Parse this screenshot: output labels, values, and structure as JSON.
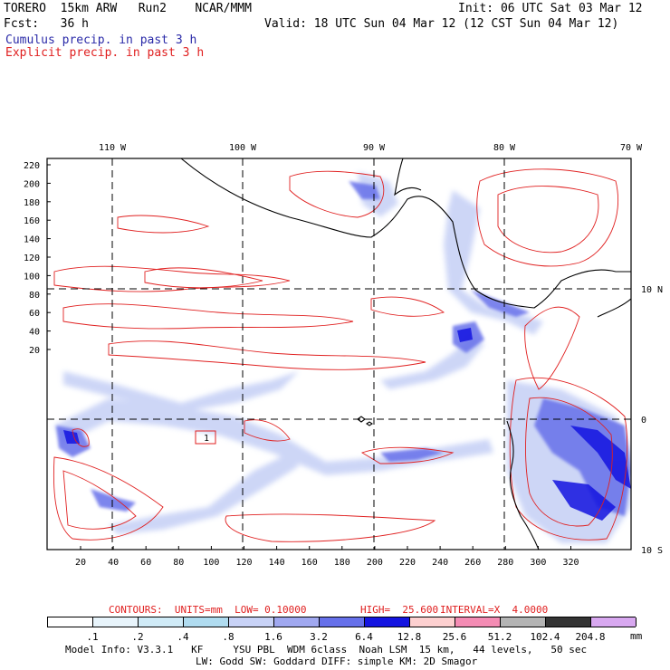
{
  "header": {
    "model": "TORERO  15km ARW   Run2    NCAR/MMM",
    "init": "Init: 06 UTC Sat 03 Mar 12",
    "fcst": "Fcst:   36 h",
    "valid": "Valid: 18 UTC Sun 04 Mar 12 (12 CST Sun 04 Mar 12)",
    "field1": "Cumulus precip. in past 3 h",
    "field2": "Explicit precip. in past 3 h"
  },
  "map": {
    "lon_labels": [
      "110 W",
      "100 W",
      "90 W",
      "80 W",
      "70 W"
    ],
    "lat_labels": [
      "10 N",
      "0",
      "10 S"
    ],
    "y_ticks": [
      "220",
      "200",
      "180",
      "160",
      "140",
      "120",
      "100",
      "80",
      "60",
      "40",
      "20"
    ],
    "x_ticks": [
      "20",
      "40",
      "60",
      "80",
      "100",
      "120",
      "140",
      "160",
      "180",
      "200",
      "220",
      "240",
      "260",
      "280",
      "300",
      "320"
    ],
    "box_label": "1"
  },
  "contours": {
    "prefix": "CONTOURS:  UNITS=mm  LOW= 0.10000",
    "high": "HIGH=  25.600",
    "interval": "INTERVAL=X  4.0000"
  },
  "colorbar": {
    "labels": [
      ".1",
      ".2",
      ".4",
      ".8",
      "1.6",
      "3.2",
      "6.4",
      "12.8",
      "25.6",
      "51.2",
      "102.4",
      "204.8"
    ],
    "unit": "mm",
    "colors": [
      "#ffffff",
      "#e8f4fb",
      "#d0ebf7",
      "#b0dcf0",
      "#c8d2f6",
      "#a0a8f0",
      "#6670ea",
      "#1414e0",
      "#fdd0d0",
      "#f48cb4",
      "#b4b4b4",
      "#343434",
      "#d8a8f0"
    ]
  },
  "footer": {
    "line1": "Model Info: V3.3.1   KF     YSU PBL  WDM 6class  Noah LSM  15 km,   44 levels,   50 sec",
    "line2": "LW: Godd SW: Goddard DIFF: simple KM: 2D Smagor"
  }
}
